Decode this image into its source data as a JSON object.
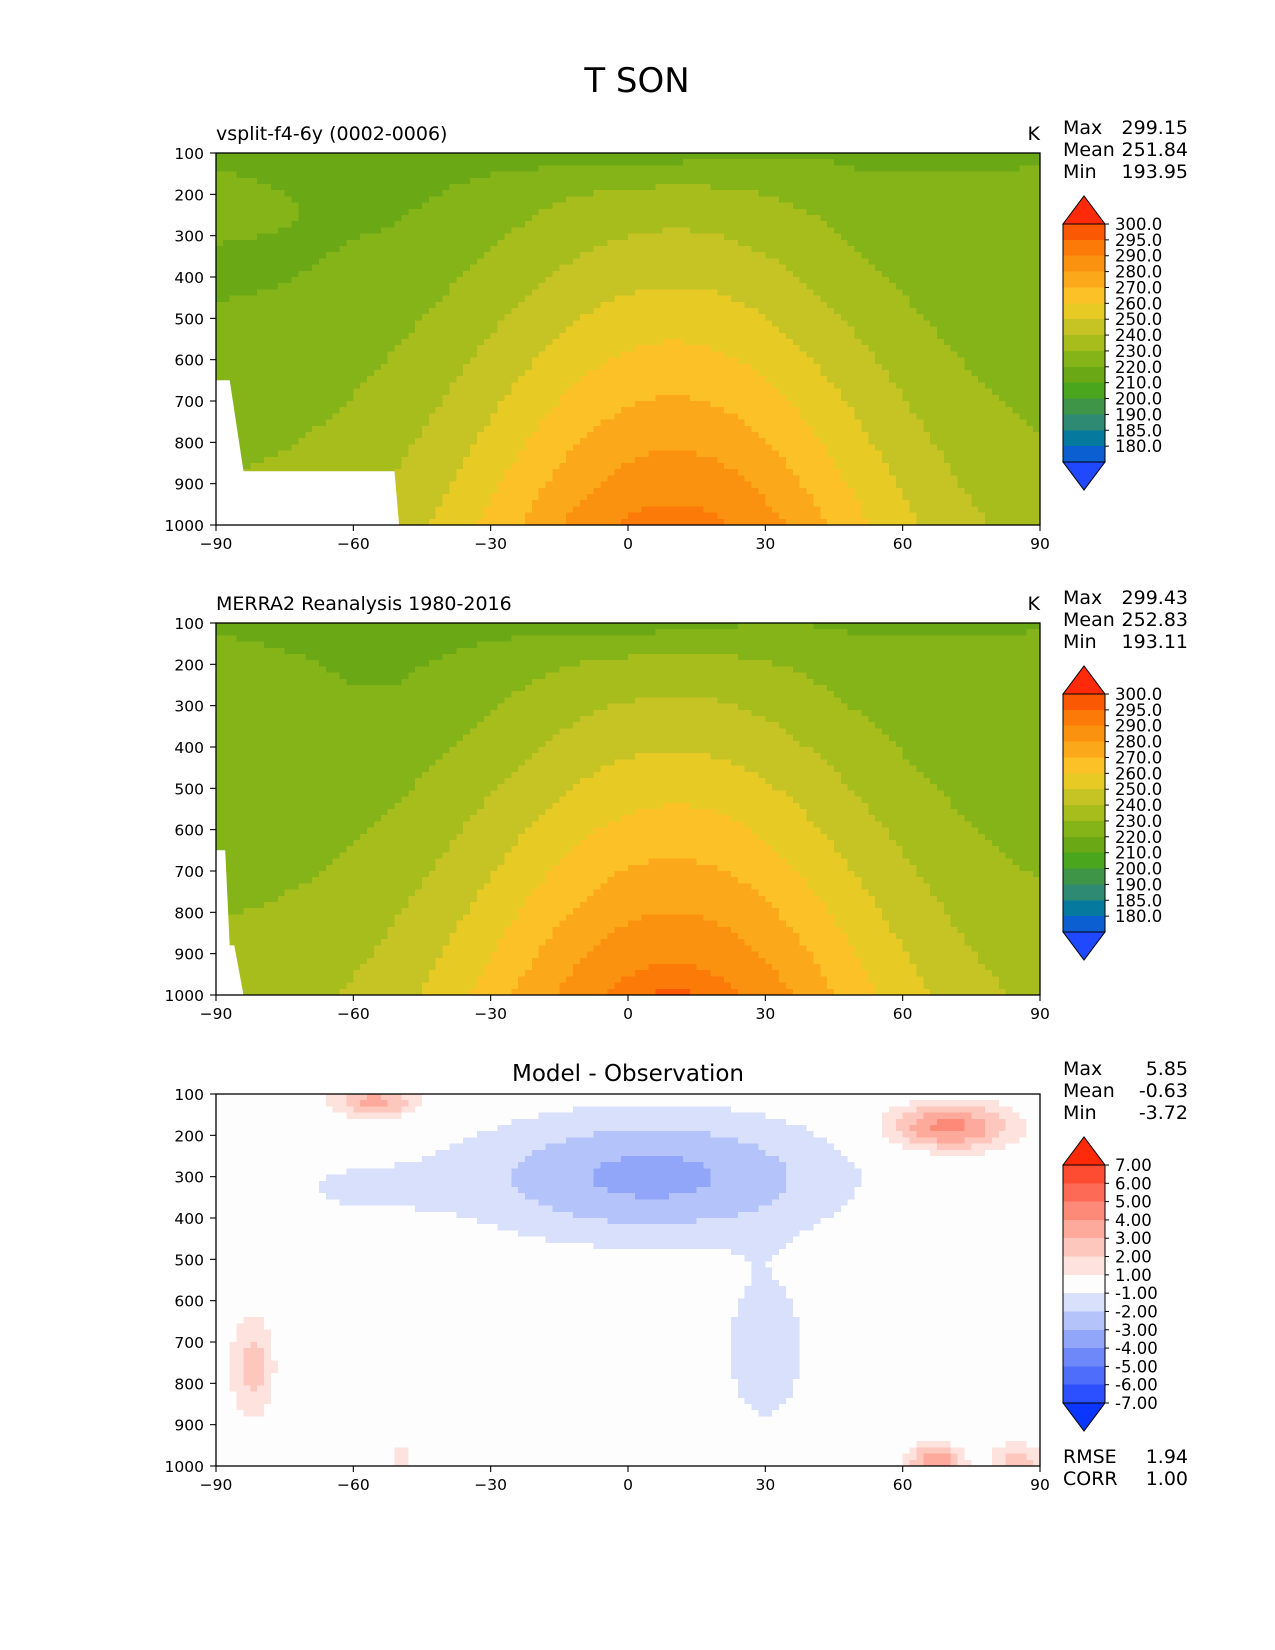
{
  "title": "T SON",
  "chart_data": [
    {
      "type": "contour",
      "title": "vsplit-f4-6y (0002-0006)",
      "units": "K",
      "stats": [
        {
          "label": "Max",
          "value": "299.15"
        },
        {
          "label": "Mean",
          "value": "251.84"
        },
        {
          "label": "Min",
          "value": "193.95"
        }
      ],
      "x_ticks": [
        "−90",
        "−60",
        "−30",
        "0",
        "30",
        "60",
        "90"
      ],
      "y_ticks": [
        "100",
        "200",
        "300",
        "400",
        "500",
        "600",
        "700",
        "800",
        "900",
        "1000"
      ],
      "xlim": [
        -90,
        90
      ],
      "ylim": [
        1000,
        100
      ],
      "levels": [
        "180.0",
        "185.0",
        "190.0",
        "200.0",
        "210.0",
        "220.0",
        "230.0",
        "240.0",
        "250.0",
        "260.0",
        "270.0",
        "280.0",
        "290.0",
        "295.0",
        "300.0"
      ],
      "colors": [
        "#1f48ff",
        "#0b5fd1",
        "#067a9e",
        "#2e8a73",
        "#3e9447",
        "#4aa61c",
        "#6aa815",
        "#85b418",
        "#a6bd1c",
        "#c6c424",
        "#e7cb24",
        "#fbc127",
        "#fba91a",
        "#fb920f",
        "#fb7a08",
        "#fb5803",
        "#ff2a0a"
      ],
      "field_params": {
        "surface": 294,
        "equator_shift_deg": 10,
        "tropopause": 205,
        "polar_warm_amp": 9
      }
    },
    {
      "type": "contour",
      "title": "MERRA2 Reanalysis 1980-2016",
      "units": "K",
      "stats": [
        {
          "label": "Max",
          "value": "299.43"
        },
        {
          "label": "Mean",
          "value": "252.83"
        },
        {
          "label": "Min",
          "value": "193.11"
        }
      ],
      "x_ticks": [
        "−90",
        "−60",
        "−30",
        "0",
        "30",
        "60",
        "90"
      ],
      "y_ticks": [
        "100",
        "200",
        "300",
        "400",
        "500",
        "600",
        "700",
        "800",
        "900",
        "1000"
      ],
      "xlim": [
        -90,
        90
      ],
      "ylim": [
        1000,
        100
      ],
      "levels": [
        "180.0",
        "185.0",
        "190.0",
        "200.0",
        "210.0",
        "220.0",
        "230.0",
        "240.0",
        "250.0",
        "260.0",
        "270.0",
        "280.0",
        "290.0",
        "295.0",
        "300.0"
      ],
      "colors": [
        "#1f48ff",
        "#0b5fd1",
        "#067a9e",
        "#2e8a73",
        "#3e9447",
        "#4aa61c",
        "#6aa815",
        "#85b418",
        "#a6bd1c",
        "#c6c424",
        "#e7cb24",
        "#fbc127",
        "#fba91a",
        "#fb920f",
        "#fb7a08",
        "#fb5803",
        "#ff2a0a"
      ],
      "field_params": {
        "surface": 296,
        "equator_shift_deg": 10,
        "tropopause": 205,
        "polar_warm_amp": 10
      }
    },
    {
      "type": "contour",
      "title": "Model - Observation",
      "units": "",
      "stats": [
        {
          "label": "Max",
          "value": "5.85"
        },
        {
          "label": "Mean",
          "value": "-0.63"
        },
        {
          "label": "Min",
          "value": "-3.72"
        }
      ],
      "footer_stats": [
        {
          "label": "RMSE",
          "value": "1.94"
        },
        {
          "label": "CORR",
          "value": "1.00"
        }
      ],
      "x_ticks": [
        "−90",
        "−60",
        "−30",
        "0",
        "30",
        "60",
        "90"
      ],
      "y_ticks": [
        "100",
        "200",
        "300",
        "400",
        "500",
        "600",
        "700",
        "800",
        "900",
        "1000"
      ],
      "xlim": [
        -90,
        90
      ],
      "ylim": [
        1000,
        100
      ],
      "levels": [
        "-7.00",
        "-6.00",
        "-5.00",
        "-4.00",
        "-3.00",
        "-2.00",
        "-1.00",
        "1.00",
        "2.00",
        "3.00",
        "4.00",
        "5.00",
        "6.00",
        "7.00"
      ],
      "colors": [
        "#0a36ff",
        "#2c50ff",
        "#4f6dfb",
        "#6f88f9",
        "#92a6f9",
        "#b4c4fb",
        "#d8e0fb",
        "#fdfdfd",
        "#fde2de",
        "#fdc7bd",
        "#fda99b",
        "#fd8a79",
        "#fd6a55",
        "#fd4c32",
        "#ff2a0a"
      ]
    }
  ]
}
